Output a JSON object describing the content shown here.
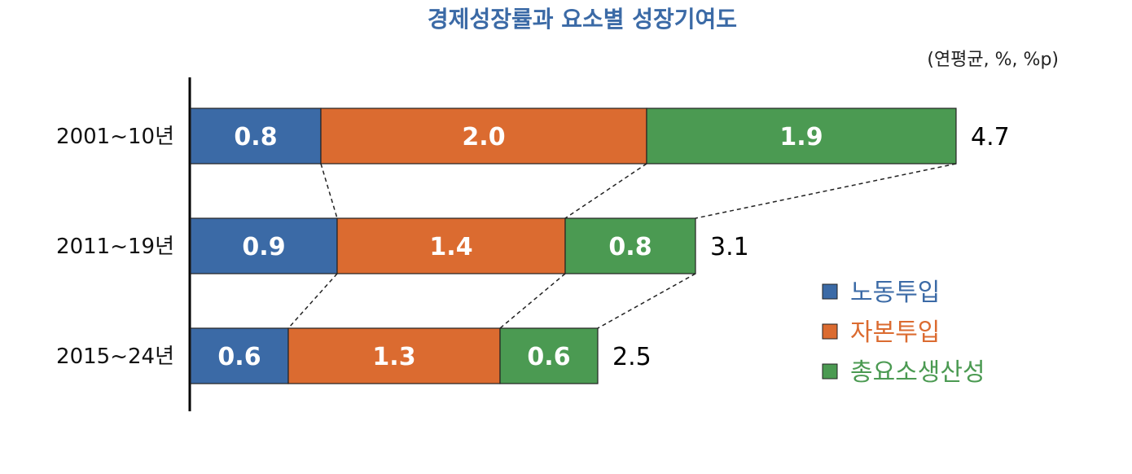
{
  "chart_data": {
    "type": "bar",
    "orientation": "horizontal",
    "stacked": true,
    "title": "경제성장률과 요소별 성장기여도",
    "unit_note": "(연평균, %, %p)",
    "categories": [
      "2001~10년",
      "2011~19년",
      "2015~24년"
    ],
    "series": [
      {
        "name": "노동투입",
        "values": [
          0.8,
          0.9,
          0.6
        ],
        "labels": [
          "0.8",
          "0.9",
          "0.6"
        ],
        "color": "#3b6aa6",
        "text_color": "#3b6aa6"
      },
      {
        "name": "자본투입",
        "values": [
          2.0,
          1.4,
          1.3
        ],
        "labels": [
          "2.0",
          "1.4",
          "1.3"
        ],
        "color": "#db6b30",
        "text_color": "#db6b30"
      },
      {
        "name": "총요소생산성",
        "values": [
          1.9,
          0.8,
          0.6
        ],
        "labels": [
          "1.9",
          "0.8",
          "0.6"
        ],
        "color": "#4b9a52",
        "text_color": "#4b9a52"
      }
    ],
    "totals": [
      4.7,
      3.1,
      2.5
    ],
    "total_labels": [
      "4.7",
      "3.1",
      "2.5"
    ],
    "connector_lines": "dashed",
    "legend_position": "right",
    "grid": false,
    "xlim": [
      0,
      4.7
    ],
    "title_color": "#3b6aa6"
  }
}
